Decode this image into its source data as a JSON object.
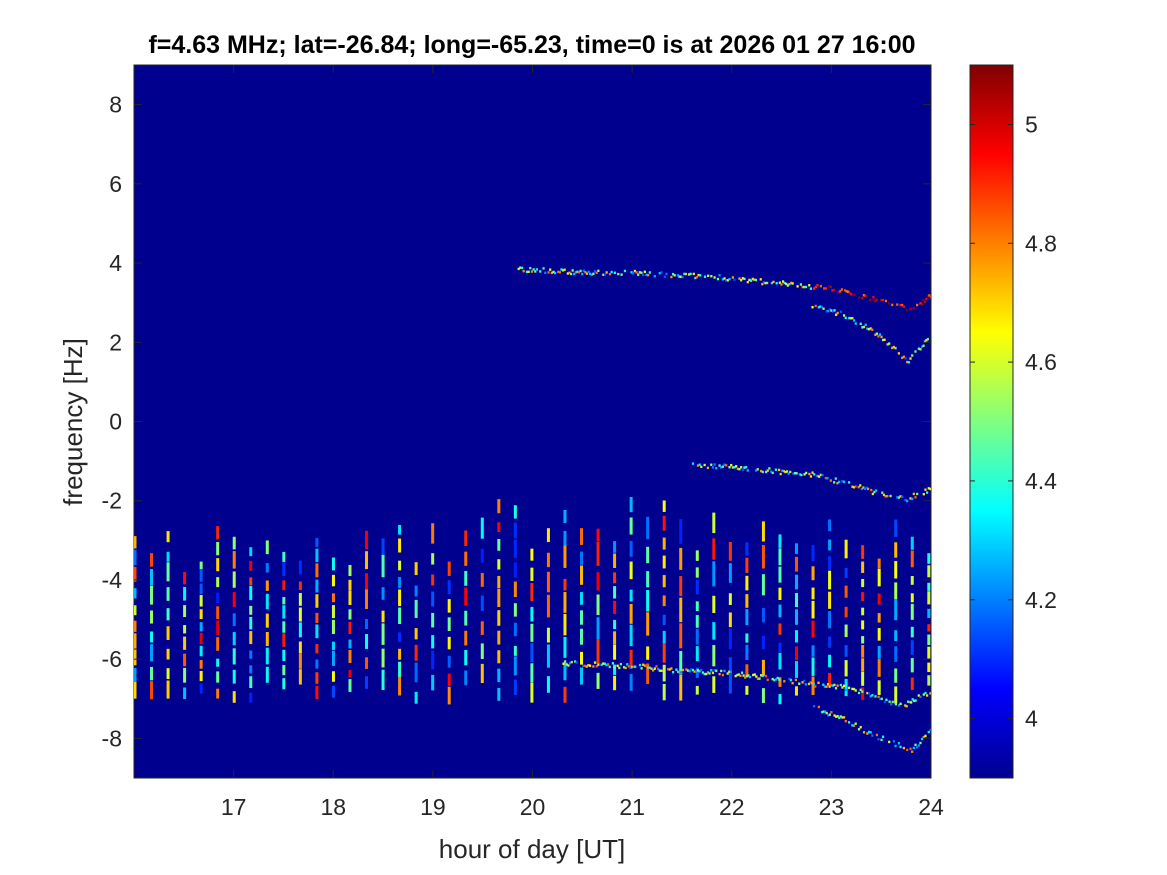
{
  "chart_data": {
    "type": "heatmap",
    "title": "f=4.63 MHz;  lat=-26.84; long=-65.23, time=0 is at 2026 01 27 16:00",
    "xlabel": "hour of day [UT]",
    "ylabel": "frequency [Hz]",
    "xlim": [
      16,
      24
    ],
    "ylim": [
      -9,
      9
    ],
    "x_ticks": [
      17,
      18,
      19,
      20,
      21,
      22,
      23,
      24
    ],
    "y_ticks": [
      -8,
      -6,
      -4,
      -2,
      0,
      2,
      4,
      6,
      8
    ],
    "colorbar": {
      "range": [
        3.9,
        5.1
      ],
      "ticks": [
        4,
        4.2,
        4.4,
        4.6,
        4.8,
        5
      ],
      "colormap": "jet"
    },
    "background_color": "#00008f",
    "grid": false,
    "traces": [
      {
        "description": "upper Doppler trace",
        "x": [
          19.85,
          20.2,
          20.6,
          21.0,
          21.4,
          21.8,
          22.2,
          22.6,
          23.0,
          23.3,
          23.6,
          23.75,
          23.9,
          24.0
        ],
        "y": [
          3.85,
          3.8,
          3.75,
          3.75,
          3.7,
          3.65,
          3.55,
          3.45,
          3.35,
          3.15,
          2.95,
          2.85,
          3.0,
          3.2
        ]
      },
      {
        "description": "upper secondary trace",
        "x": [
          22.8,
          23.1,
          23.4,
          23.6,
          23.75,
          23.9,
          24.0
        ],
        "y": [
          2.9,
          2.7,
          2.3,
          1.9,
          1.5,
          1.9,
          2.3
        ]
      },
      {
        "description": "middle Doppler trace",
        "x": [
          21.6,
          22.0,
          22.4,
          22.8,
          23.2,
          23.5,
          23.75,
          24.0
        ],
        "y": [
          -1.1,
          -1.15,
          -1.25,
          -1.35,
          -1.6,
          -1.85,
          -1.95,
          -1.7
        ]
      },
      {
        "description": "lower Doppler trace",
        "x": [
          20.3,
          20.7,
          21.1,
          21.5,
          21.9,
          22.3,
          22.7,
          23.1,
          23.4,
          23.7,
          23.85,
          24.0
        ],
        "y": [
          -6.1,
          -6.15,
          -6.2,
          -6.3,
          -6.35,
          -6.45,
          -6.6,
          -6.7,
          -6.9,
          -7.2,
          -7.0,
          -6.8
        ]
      },
      {
        "description": "lower secondary trace",
        "x": [
          22.8,
          23.1,
          23.4,
          23.6,
          23.8,
          24.0
        ],
        "y": [
          -7.2,
          -7.5,
          -7.9,
          -8.1,
          -8.3,
          -7.8
        ]
      }
    ],
    "periodic_bands": {
      "description": "vertical striations between about -7 and -3 Hz",
      "x_start": 16.0,
      "x_end": 24.0,
      "spacing_h": 0.166,
      "y_range": [
        -7.0,
        -3.0
      ]
    }
  }
}
